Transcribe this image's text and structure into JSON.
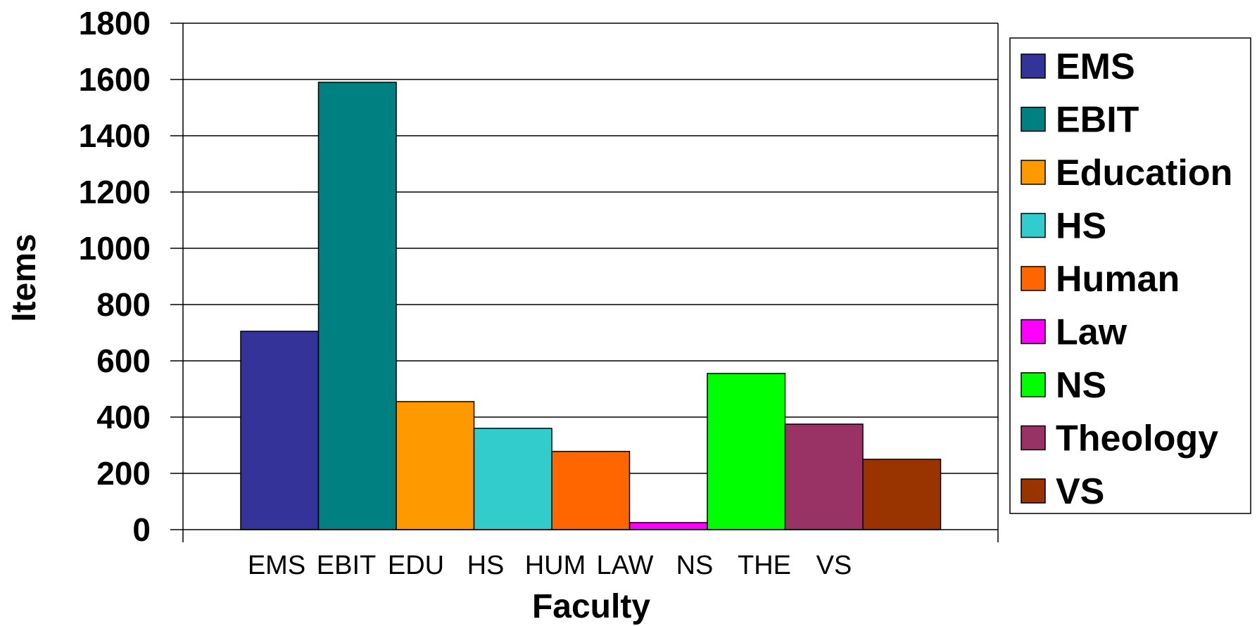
{
  "chart_data": {
    "type": "bar",
    "categories": [
      "EMS",
      "EBIT",
      "EDU",
      "HS",
      "HUM",
      "LAW",
      "NS",
      "THE",
      "VS"
    ],
    "values": [
      705,
      1590,
      455,
      360,
      278,
      25,
      555,
      375,
      250
    ],
    "colors": [
      "#333399",
      "#008080",
      "#FF9900",
      "#33CCCC",
      "#FF6600",
      "#FF00FF",
      "#00FF00",
      "#993366",
      "#993300"
    ],
    "legend": [
      "EMS",
      "EBIT",
      "Education",
      "HS",
      "Human",
      "Law",
      "NS",
      "Theology",
      "VS"
    ],
    "legend_position": "right",
    "ylim": [
      0,
      1800
    ],
    "yticks": [
      0,
      200,
      400,
      600,
      800,
      1000,
      1200,
      1400,
      1600,
      1800
    ],
    "grid": true,
    "xlabel": "Faculty",
    "ylabel": "Items"
  }
}
